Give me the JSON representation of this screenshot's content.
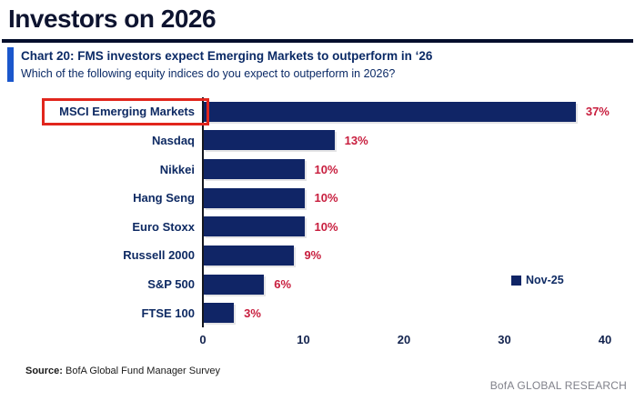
{
  "header": {
    "title": "Investors on 2026"
  },
  "chart": {
    "heading": "Chart 20: FMS investors expect Emerging Markets to outperform in ‘26",
    "subtitle": "Which of the following equity indices do you expect to outperform in 2026?"
  },
  "chart_data": {
    "type": "bar",
    "orientation": "horizontal",
    "title": "Chart 20: FMS investors expect Emerging Markets to outperform in ‘26",
    "subtitle": "Which of the following equity indices do you expect to outperform in 2026?",
    "categories": [
      "MSCI Emerging Markets",
      "Nasdaq",
      "Nikkei",
      "Hang Seng",
      "Euro Stoxx",
      "Russell 2000",
      "S&P 500",
      "FTSE 100"
    ],
    "values": [
      37,
      13,
      10,
      10,
      10,
      9,
      6,
      3
    ],
    "value_labels": [
      "37%",
      "13%",
      "10%",
      "10%",
      "10%",
      "9%",
      "6%",
      "3%"
    ],
    "xlim": [
      0,
      40
    ],
    "xticks": [
      0,
      10,
      20,
      30,
      40
    ],
    "grid": false,
    "legend": {
      "label": "Nov-25",
      "position": "right-middle"
    },
    "highlight_category_index": 0,
    "colors": {
      "bar": "#102566",
      "value_label": "#c81e3e",
      "highlight_box": "#e1261d",
      "category_label": "#0e2a63",
      "accent_bar": "#1b57cc",
      "heading": "#0b2a66"
    }
  },
  "footer": {
    "source_label": "Source:",
    "source_text": " BofA Global Fund Manager Survey",
    "brand": "BofA GLOBAL RESEARCH"
  }
}
